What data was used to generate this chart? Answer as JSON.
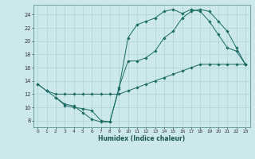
{
  "title": "",
  "xlabel": "Humidex (Indice chaleur)",
  "bg_color": "#cce8ec",
  "line_color": "#1a6b60",
  "xlim": [
    -0.5,
    23.5
  ],
  "ylim": [
    7.0,
    25.5
  ],
  "xticks": [
    0,
    1,
    2,
    3,
    4,
    5,
    6,
    7,
    8,
    9,
    10,
    11,
    12,
    13,
    14,
    15,
    16,
    17,
    18,
    19,
    20,
    21,
    22,
    23
  ],
  "yticks": [
    8,
    10,
    12,
    14,
    16,
    18,
    20,
    22,
    24
  ],
  "grid_color": "#aad4d8",
  "line1_x": [
    0,
    1,
    2,
    3,
    4,
    5,
    6,
    7,
    8,
    9,
    10,
    11,
    12,
    13,
    14,
    15,
    16,
    17,
    18,
    19,
    20,
    21,
    22,
    23
  ],
  "line1_y": [
    13.5,
    12.5,
    11.5,
    10.5,
    10.2,
    9.2,
    8.2,
    7.8,
    7.8,
    12.8,
    20.5,
    22.5,
    23.0,
    23.5,
    24.5,
    24.8,
    24.2,
    24.8,
    24.5,
    23.0,
    21.0,
    19.0,
    18.5,
    16.5
  ],
  "line2_x": [
    2,
    3,
    4,
    5,
    6,
    7,
    8,
    9,
    10,
    11,
    12,
    13,
    14,
    15,
    16,
    17,
    18,
    19,
    20,
    21,
    22,
    23
  ],
  "line2_y": [
    11.5,
    10.3,
    10.0,
    9.8,
    9.5,
    8.0,
    7.8,
    13.0,
    17.0,
    17.0,
    17.5,
    18.5,
    20.5,
    21.5,
    23.5,
    24.5,
    24.8,
    24.5,
    23.0,
    21.5,
    19.0,
    16.5
  ],
  "line3_x": [
    0,
    1,
    2,
    3,
    4,
    5,
    6,
    7,
    8,
    9,
    10,
    11,
    12,
    13,
    14,
    15,
    16,
    17,
    18,
    19,
    20,
    21,
    22,
    23
  ],
  "line3_y": [
    13.5,
    12.5,
    12.0,
    12.0,
    12.0,
    12.0,
    12.0,
    12.0,
    12.0,
    12.0,
    12.5,
    13.0,
    13.5,
    14.0,
    14.5,
    15.0,
    15.5,
    16.0,
    16.5,
    16.5,
    16.5,
    16.5,
    16.5,
    16.5
  ]
}
